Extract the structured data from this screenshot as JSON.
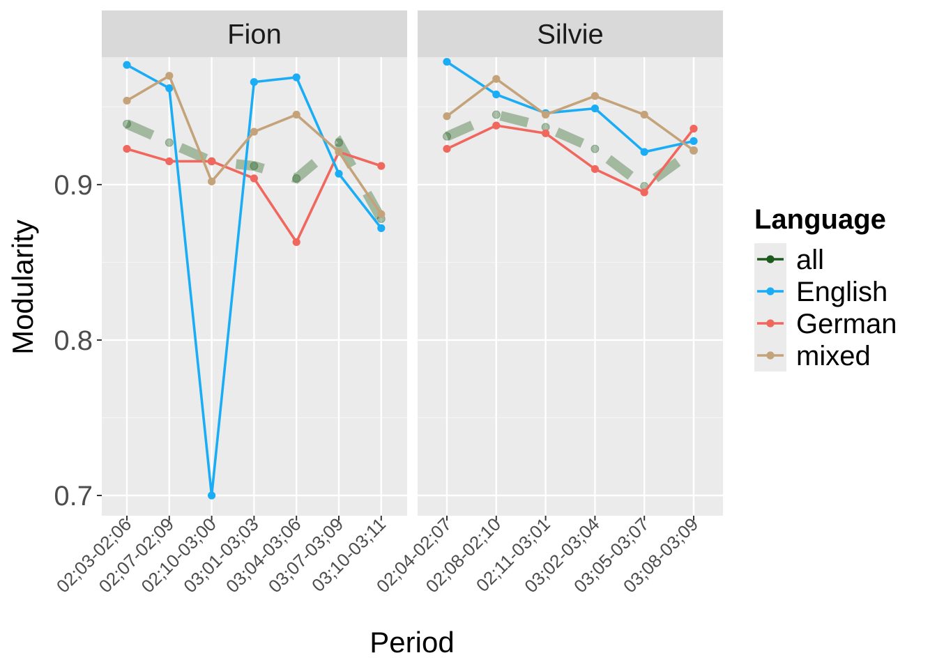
{
  "chart_data": {
    "type": "line",
    "ylabel": "Modularity",
    "xlabel": "Period",
    "ylim": [
      0.687,
      0.982
    ],
    "yticks": [
      0.7,
      0.8,
      0.9
    ],
    "ytick_labels": [
      "0.7",
      "0.8",
      "0.9"
    ],
    "legend": {
      "title": "Language",
      "position": "right",
      "entries": [
        {
          "name": "all",
          "color": "#1d5a1d"
        },
        {
          "name": "English",
          "color": "#1aadf5"
        },
        {
          "name": "German",
          "color": "#f0675e"
        },
        {
          "name": "mixed",
          "color": "#c4a37a"
        }
      ]
    },
    "all_trend_color": "#8aa886",
    "panels": [
      {
        "title": "Fion",
        "categories": [
          "02;03-02;06",
          "02;07-02;09",
          "02;10-03;00",
          "03;01-03;03",
          "03;04-03;06",
          "03;07-03;09",
          "03;10-03;11"
        ],
        "series": [
          {
            "name": "all",
            "values": [
              0.939,
              0.927,
              0.915,
              0.912,
              0.904,
              0.927,
              0.878
            ]
          },
          {
            "name": "English",
            "values": [
              0.977,
              0.962,
              0.7,
              0.966,
              0.969,
              0.907,
              0.872
            ]
          },
          {
            "name": "German",
            "values": [
              0.923,
              0.915,
              0.915,
              0.904,
              0.863,
              0.921,
              0.912
            ]
          },
          {
            "name": "mixed",
            "values": [
              0.954,
              0.97,
              0.902,
              0.934,
              0.945,
              0.921,
              0.881
            ]
          }
        ]
      },
      {
        "title": "Silvie",
        "categories": [
          "02;04-02;07",
          "02;08-02;10",
          "02;11-03;01",
          "03;02-03;04",
          "03;05-03;07",
          "03;08-03;09"
        ],
        "series": [
          {
            "name": "all",
            "values": [
              0.931,
              0.945,
              0.937,
              0.923,
              0.899,
              0.922
            ]
          },
          {
            "name": "English",
            "values": [
              0.979,
              0.958,
              0.946,
              0.949,
              0.921,
              0.928
            ]
          },
          {
            "name": "German",
            "values": [
              0.923,
              0.938,
              0.933,
              0.91,
              0.895,
              0.936
            ]
          },
          {
            "name": "mixed",
            "values": [
              0.944,
              0.968,
              0.945,
              0.957,
              0.945,
              0.922
            ]
          }
        ]
      }
    ]
  }
}
